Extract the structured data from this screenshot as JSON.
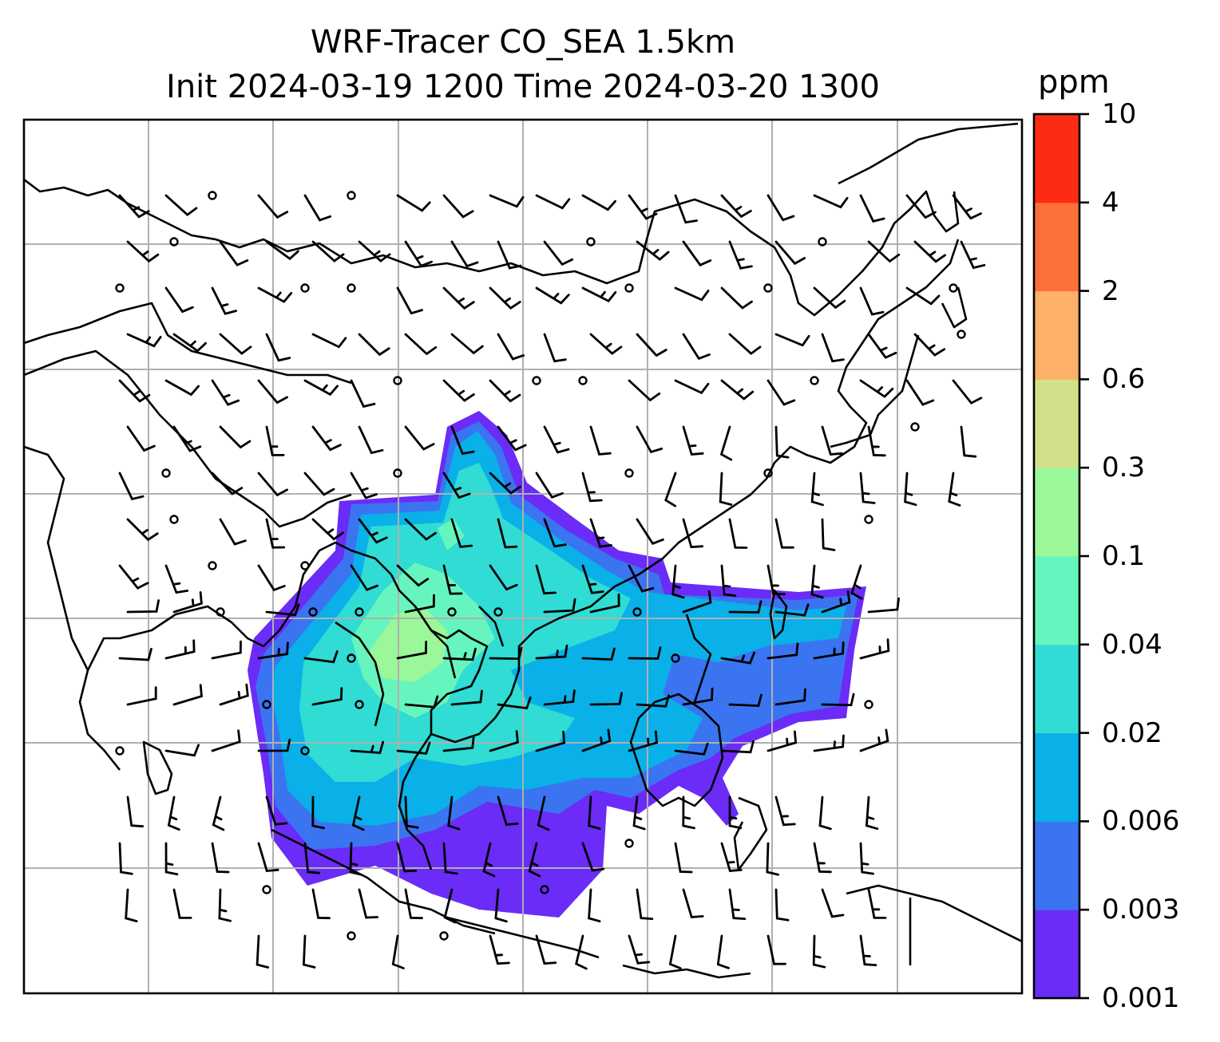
{
  "title": {
    "line1": "WRF-Tracer CO_SEA 1.5km",
    "line2": "Init 2024-03-19 1200 Time 2024-03-20 1300"
  },
  "colorbar": {
    "unit": "ppm",
    "ticks": [
      "0.001",
      "0.003",
      "0.006",
      "0.02",
      "0.04",
      "0.1",
      "0.3",
      "0.6",
      "2",
      "4",
      "10"
    ],
    "colors": [
      "#6a2cf6",
      "#3a74f0",
      "#0ab0e8",
      "#30dcd4",
      "#66f5be",
      "#9af79a",
      "#d2e08a",
      "#fdb068",
      "#fd6f3a",
      "#fd2b14"
    ]
  },
  "map": {
    "gridlines": true,
    "coastline_color": "#000000",
    "grid_color": "#b0b0b0"
  }
}
